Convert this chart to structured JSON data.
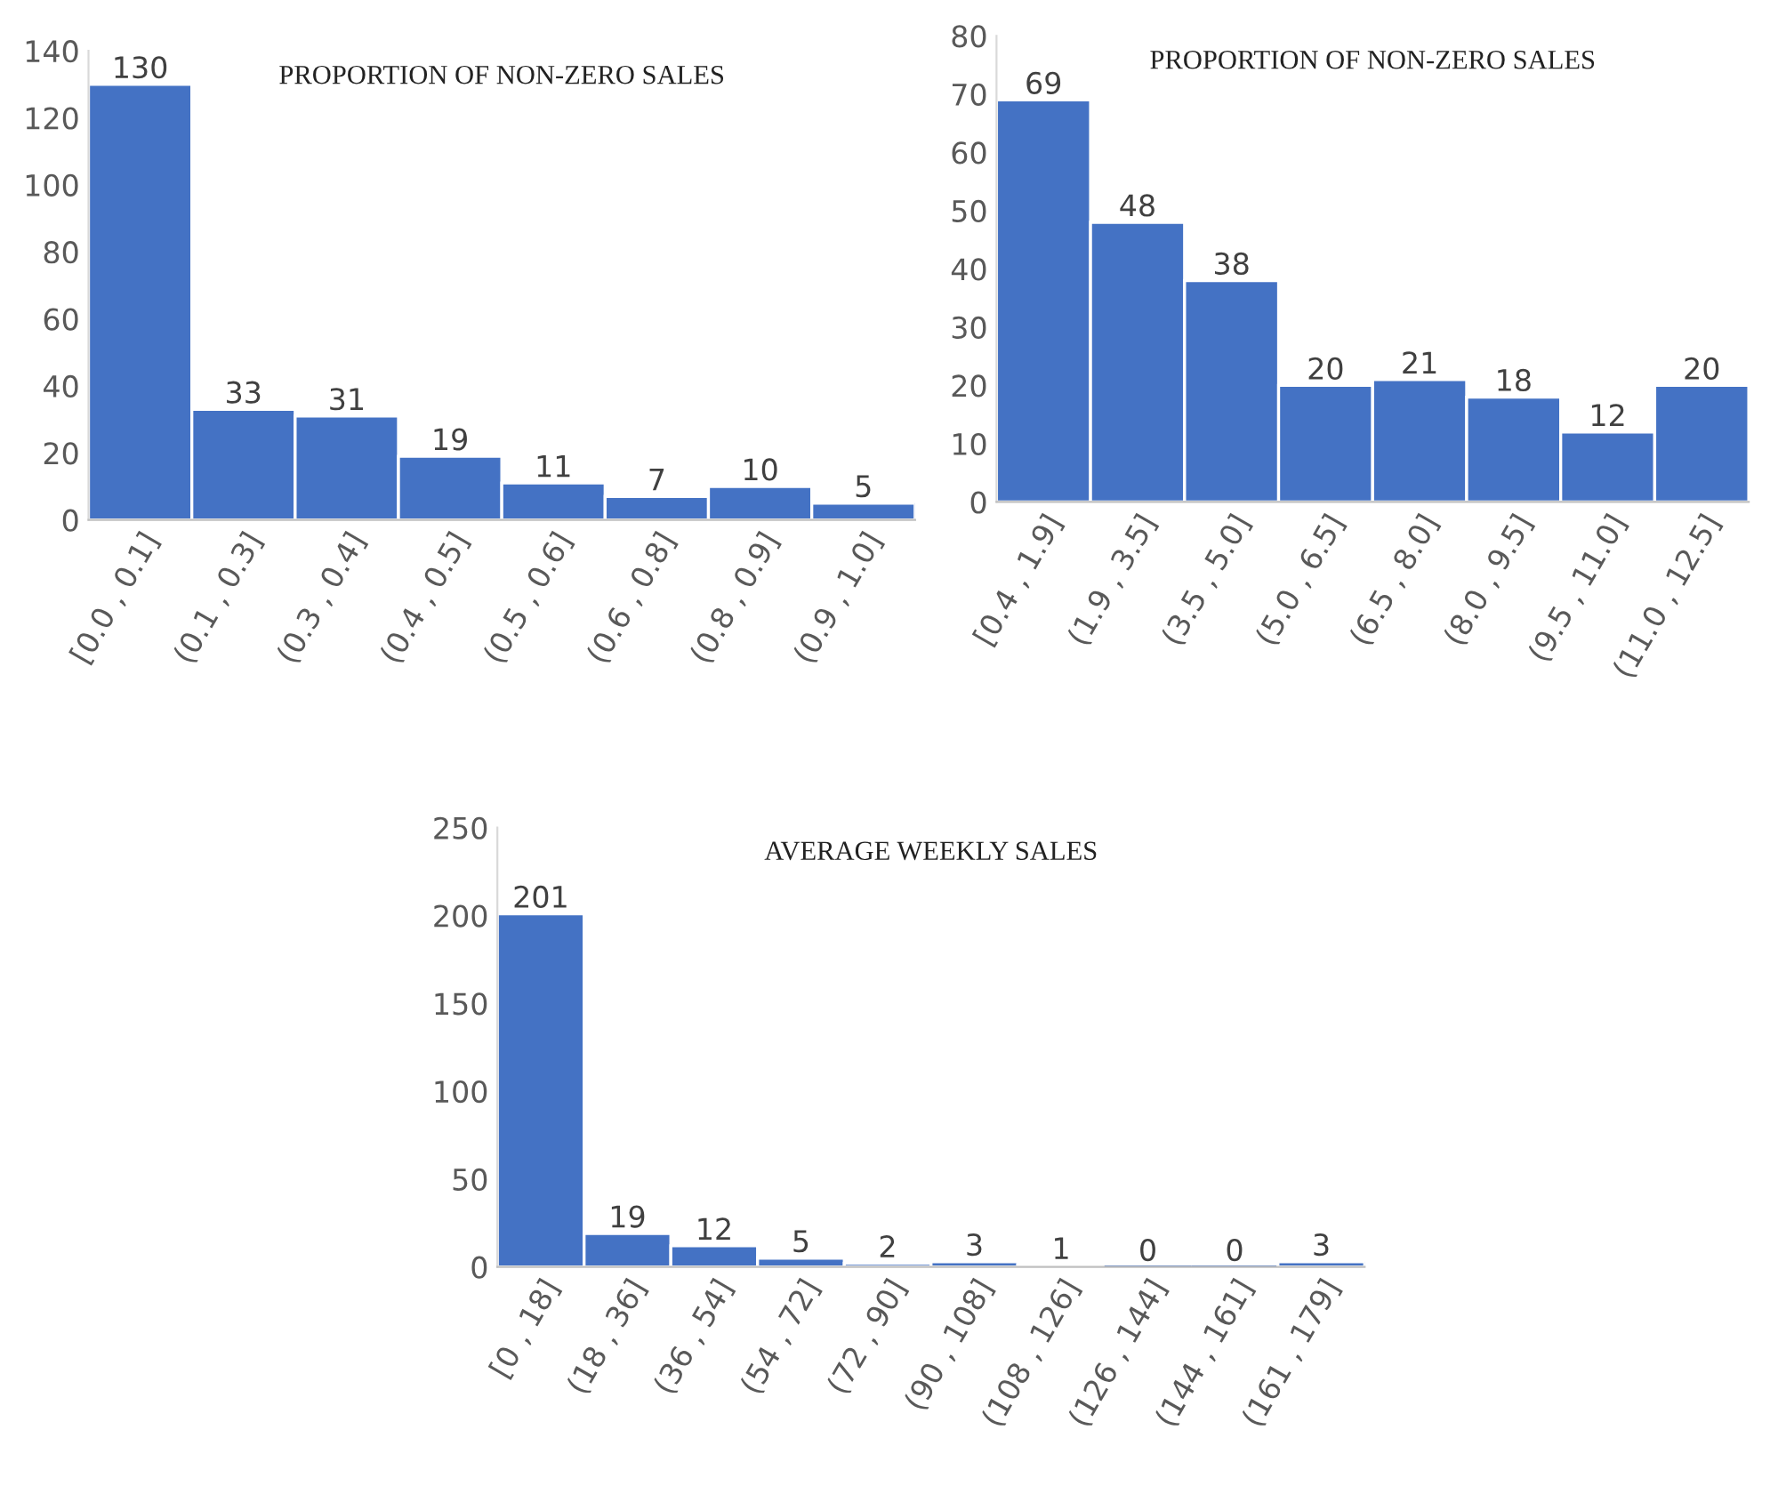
{
  "chart_data": [
    {
      "type": "bar",
      "title": "PROPORTION OF NON-ZERO SALES",
      "categories": [
        "[0.0 , 0.1]",
        "(0.1 , 0.3]",
        "(0.3 , 0.4]",
        "(0.4 , 0.5]",
        "(0.5 , 0.6]",
        "(0.6 , 0.8]",
        "(0.8 , 0.9]",
        "(0.9 , 1.0]"
      ],
      "values": [
        130,
        33,
        31,
        19,
        11,
        7,
        10,
        5
      ],
      "color": "#4472c4",
      "ylim": [
        0,
        140
      ],
      "yticks": [
        0,
        20,
        40,
        60,
        80,
        100,
        120,
        140
      ],
      "data_labels": true,
      "grid": false
    },
    {
      "type": "bar",
      "title": "PROPORTION OF NON-ZERO SALES",
      "categories": [
        "[0.4 , 1.9]",
        "(1.9 , 3.5]",
        "(3.5 , 5.0]",
        "(5.0 , 6.5]",
        "(6.5 , 8.0]",
        "(8.0 , 9.5]",
        "(9.5 , 11.0]",
        "(11.0 , 12.5]"
      ],
      "values": [
        69,
        48,
        38,
        20,
        21,
        18,
        12,
        20
      ],
      "color": "#4472c4",
      "ylim": [
        0,
        80
      ],
      "yticks": [
        0,
        10,
        20,
        30,
        40,
        50,
        60,
        70,
        80
      ],
      "data_labels": true,
      "grid": false
    },
    {
      "type": "bar",
      "title": "AVERAGE WEEKLY SALES",
      "categories": [
        "[0 , 18]",
        "(18 , 36]",
        "(36 , 54]",
        "(54 , 72]",
        "(72 , 90]",
        "(90 , 108]",
        "(108 , 126]",
        "(126 , 144]",
        "(144 , 161]",
        "(161 , 179]"
      ],
      "values": [
        201,
        19,
        12,
        5,
        2,
        3,
        1,
        0,
        0,
        3
      ],
      "color": "#4472c4",
      "ylim": [
        0,
        250
      ],
      "yticks": [
        0,
        50,
        100,
        150,
        200,
        250
      ],
      "data_labels": true,
      "grid": false
    }
  ]
}
